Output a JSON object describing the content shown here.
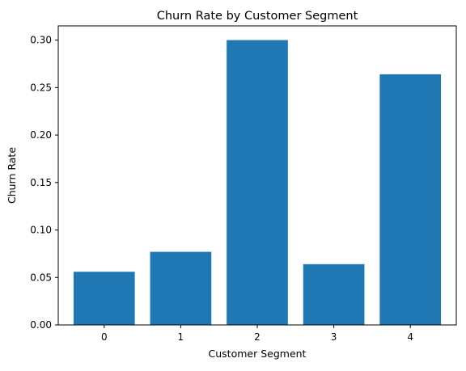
{
  "chart_data": {
    "type": "bar",
    "title": "Churn Rate by Customer Segment",
    "xlabel": "Customer Segment",
    "ylabel": "Churn Rate",
    "categories": [
      "0",
      "1",
      "2",
      "3",
      "4"
    ],
    "values": [
      0.056,
      0.077,
      0.3,
      0.064,
      0.264
    ],
    "ylim": [
      0,
      0.315
    ],
    "yticks": [
      "0.00",
      "0.05",
      "0.10",
      "0.15",
      "0.20",
      "0.25",
      "0.30"
    ],
    "bar_color": "#1f77b4",
    "grid": false,
    "legend": "none"
  }
}
